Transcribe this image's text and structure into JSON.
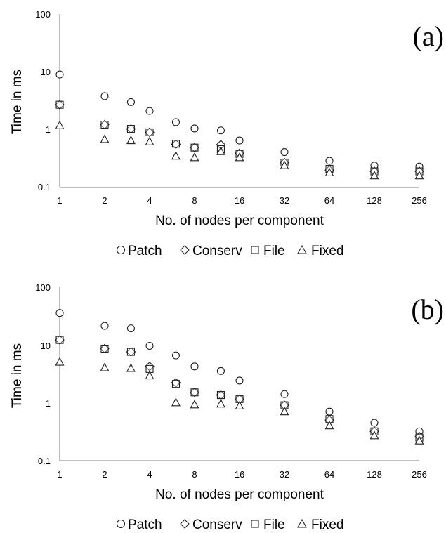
{
  "chart_data": [
    {
      "type": "scatter",
      "panel_label": "(a)",
      "xlabel": "No. of nodes per component",
      "ylabel": "Time in ms",
      "x_scale": "log2",
      "y_scale": "log10",
      "ylim": [
        0.1,
        100
      ],
      "x_ticks": [
        "1",
        "2",
        "4",
        "8",
        "16",
        "32",
        "64",
        "128",
        "256"
      ],
      "y_ticks": [
        "100",
        "10",
        "1",
        "0.1"
      ],
      "x": [
        1,
        2,
        3,
        4,
        6,
        8,
        12,
        16,
        32,
        64,
        128,
        256
      ],
      "series": [
        {
          "name": "Patch",
          "marker": "circle",
          "values": [
            9,
            3.8,
            3.0,
            2.1,
            1.35,
            1.05,
            0.97,
            0.65,
            0.41,
            0.29,
            0.24,
            0.23
          ]
        },
        {
          "name": "Conserv",
          "marker": "diamond",
          "values": [
            2.7,
            1.22,
            1.03,
            0.9,
            0.56,
            0.49,
            0.55,
            0.39,
            0.27,
            0.2,
            0.19,
            0.19
          ]
        },
        {
          "name": "File",
          "marker": "square",
          "values": [
            2.7,
            1.22,
            1.03,
            0.9,
            0.57,
            0.49,
            0.46,
            0.38,
            0.27,
            0.21,
            0.19,
            0.19
          ]
        },
        {
          "name": "Fixed",
          "marker": "triangle",
          "values": [
            1.18,
            0.68,
            0.65,
            0.62,
            0.35,
            0.33,
            0.42,
            0.33,
            0.24,
            0.18,
            0.16,
            0.16
          ]
        }
      ],
      "legend_position": "bottom"
    },
    {
      "type": "scatter",
      "panel_label": "(b)",
      "xlabel": "No. of nodes per component",
      "ylabel": "Time in ms",
      "x_scale": "log2",
      "y_scale": "log10",
      "ylim": [
        0.1,
        100
      ],
      "x_ticks": [
        "1",
        "2",
        "4",
        "8",
        "16",
        "32",
        "64",
        "128",
        "256"
      ],
      "y_ticks": [
        "100",
        "10",
        "1",
        "0.1"
      ],
      "x": [
        1,
        2,
        3,
        4,
        6,
        8,
        12,
        16,
        32,
        64,
        128,
        256
      ],
      "series": [
        {
          "name": "Patch",
          "marker": "circle",
          "values": [
            35,
            21,
            19,
            9.5,
            6.5,
            4.2,
            3.5,
            2.4,
            1.4,
            0.7,
            0.45,
            0.32
          ]
        },
        {
          "name": "Conserv",
          "marker": "diamond",
          "values": [
            12,
            8.5,
            7.5,
            4.2,
            2.2,
            1.5,
            1.35,
            1.15,
            0.9,
            0.5,
            0.32,
            0.26
          ]
        },
        {
          "name": "File",
          "marker": "square",
          "values": [
            12,
            8.5,
            7.5,
            3.8,
            2.1,
            1.5,
            1.35,
            1.15,
            0.9,
            0.52,
            0.32,
            0.25
          ]
        },
        {
          "name": "Fixed",
          "marker": "triangle",
          "values": [
            5.0,
            4.0,
            3.9,
            2.9,
            1.0,
            0.92,
            0.95,
            0.88,
            0.7,
            0.4,
            0.27,
            0.22
          ]
        }
      ],
      "legend_position": "bottom"
    }
  ]
}
